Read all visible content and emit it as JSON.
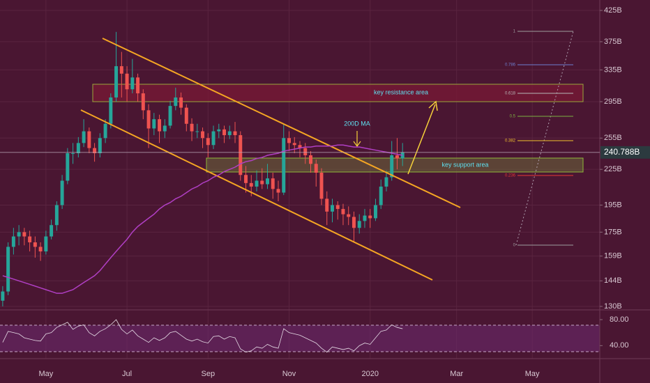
{
  "chart_data": {
    "type": "candlestick",
    "log": true,
    "grid": true,
    "categories": [
      null,
      null,
      null,
      null,
      null,
      null,
      null,
      null,
      "May",
      null,
      null,
      null,
      null,
      null,
      null,
      null,
      null,
      null,
      null,
      null,
      null,
      null,
      null,
      "Jul",
      null,
      null,
      null,
      null,
      null,
      null,
      null,
      null,
      null,
      null,
      null,
      null,
      null,
      null,
      "Sep",
      null,
      null,
      null,
      null,
      null,
      null,
      null,
      null,
      null,
      null,
      null,
      null,
      null,
      null,
      "Nov",
      null,
      null,
      null,
      null,
      null,
      null,
      null,
      null,
      null,
      null,
      null,
      null,
      null,
      null,
      "2020",
      null,
      null,
      null,
      null,
      null,
      null,
      null,
      null,
      null,
      null,
      null,
      null,
      null,
      null,
      null,
      "Mar",
      null,
      null,
      null,
      null,
      null,
      null,
      null,
      null,
      null,
      null,
      null,
      null,
      null,
      "May",
      null,
      null,
      null,
      null,
      null,
      null,
      null,
      null,
      null,
      null,
      null,
      null
    ],
    "up_color": "#26a69a",
    "down_color": "#ef5350",
    "ohlc": [
      [
        133,
        141,
        130,
        138
      ],
      [
        138,
        168,
        136,
        165
      ],
      [
        165,
        178,
        160,
        172
      ],
      [
        172,
        180,
        166,
        175
      ],
      [
        175,
        178,
        166,
        172
      ],
      [
        172,
        176,
        162,
        168
      ],
      [
        168,
        172,
        158,
        165
      ],
      [
        165,
        168,
        156,
        162
      ],
      [
        162,
        176,
        160,
        172
      ],
      [
        172,
        184,
        170,
        180
      ],
      [
        180,
        198,
        176,
        195
      ],
      [
        195,
        220,
        192,
        215
      ],
      [
        215,
        245,
        212,
        240
      ],
      [
        240,
        250,
        230,
        240
      ],
      [
        240,
        256,
        236,
        250
      ],
      [
        250,
        275,
        246,
        262
      ],
      [
        262,
        266,
        240,
        245
      ],
      [
        245,
        250,
        232,
        240
      ],
      [
        240,
        260,
        236,
        255
      ],
      [
        255,
        275,
        250,
        270
      ],
      [
        270,
        305,
        265,
        300
      ],
      [
        300,
        390,
        295,
        340
      ],
      [
        340,
        360,
        300,
        330
      ],
      [
        330,
        340,
        295,
        310
      ],
      [
        310,
        350,
        305,
        325
      ],
      [
        325,
        330,
        295,
        305
      ],
      [
        305,
        310,
        275,
        285
      ],
      [
        285,
        292,
        245,
        265
      ],
      [
        265,
        282,
        258,
        275
      ],
      [
        275,
        280,
        250,
        262
      ],
      [
        262,
        275,
        255,
        268
      ],
      [
        268,
        296,
        265,
        290
      ],
      [
        290,
        312,
        285,
        300
      ],
      [
        300,
        306,
        280,
        288
      ],
      [
        288,
        292,
        262,
        270
      ],
      [
        270,
        276,
        252,
        262
      ],
      [
        262,
        270,
        255,
        262
      ],
      [
        262,
        266,
        245,
        255
      ],
      [
        255,
        260,
        236,
        248
      ],
      [
        248,
        268,
        244,
        262
      ],
      [
        262,
        270,
        255,
        264
      ],
      [
        264,
        268,
        250,
        258
      ],
      [
        258,
        268,
        254,
        262
      ],
      [
        262,
        272,
        250,
        258
      ],
      [
        258,
        262,
        215,
        220
      ],
      [
        220,
        228,
        205,
        213
      ],
      [
        213,
        220,
        202,
        210
      ],
      [
        210,
        224,
        206,
        215
      ],
      [
        215,
        226,
        208,
        212
      ],
      [
        212,
        230,
        208,
        217
      ],
      [
        217,
        222,
        200,
        208
      ],
      [
        208,
        215,
        198,
        205
      ],
      [
        205,
        270,
        203,
        255
      ],
      [
        255,
        262,
        242,
        250
      ],
      [
        250,
        256,
        240,
        248
      ],
      [
        248,
        252,
        236,
        245
      ],
      [
        245,
        250,
        230,
        238
      ],
      [
        238,
        242,
        222,
        230
      ],
      [
        230,
        234,
        210,
        222
      ],
      [
        222,
        226,
        195,
        200
      ],
      [
        200,
        206,
        180,
        190
      ],
      [
        190,
        200,
        182,
        195
      ],
      [
        195,
        198,
        184,
        192
      ],
      [
        192,
        196,
        180,
        188
      ],
      [
        188,
        194,
        180,
        186
      ],
      [
        186,
        190,
        168,
        178
      ],
      [
        178,
        188,
        174,
        183
      ],
      [
        183,
        192,
        178,
        187
      ],
      [
        187,
        192,
        178,
        185
      ],
      [
        185,
        200,
        183,
        195
      ],
      [
        195,
        216,
        192,
        210
      ],
      [
        210,
        224,
        206,
        218
      ],
      [
        218,
        252,
        215,
        238
      ],
      [
        238,
        255,
        225,
        235
      ],
      [
        235,
        250,
        228,
        240.788
      ],
      null,
      null,
      null,
      null,
      null,
      null,
      null,
      null,
      null,
      null,
      null,
      null,
      null,
      null,
      null,
      null,
      null,
      null,
      null,
      null,
      null,
      null,
      null,
      null,
      null,
      null,
      null,
      null,
      null,
      null,
      null,
      null,
      null,
      null,
      null,
      null
    ],
    "ma_color": "#b03fc4",
    "ma_values": [
      147,
      146,
      145,
      144,
      143,
      142,
      141,
      140,
      139,
      138,
      137,
      137,
      138,
      139,
      141,
      143,
      145,
      147,
      150,
      154,
      158,
      162,
      166,
      170,
      175,
      179,
      182,
      185,
      188,
      192,
      195,
      197,
      200,
      202,
      205,
      208,
      210,
      213,
      215,
      218,
      220,
      223,
      225,
      227,
      230,
      232,
      233,
      235,
      236,
      238,
      239,
      240,
      242,
      243,
      244,
      245,
      246,
      246,
      247,
      247,
      247,
      247,
      248,
      248,
      247,
      246,
      246,
      245,
      244,
      243,
      242,
      241,
      240,
      239,
      238,
      null,
      null,
      null,
      null,
      null,
      null,
      null,
      null,
      null,
      null,
      null,
      null,
      null,
      null,
      null,
      null,
      null,
      null,
      null,
      null,
      null,
      null,
      null,
      null,
      null,
      null,
      null,
      null,
      null,
      null,
      null,
      null,
      null,
      null,
      null,
      null
    ],
    "ylim": [
      130,
      425
    ],
    "yticks": [
      {
        "value": 130,
        "label": "130B"
      },
      {
        "value": 144,
        "label": "144B"
      },
      {
        "value": 159,
        "label": "159B"
      },
      {
        "value": 175,
        "label": "175B"
      },
      {
        "value": 195,
        "label": "195B"
      },
      {
        "value": 225,
        "label": "225B"
      },
      {
        "value": 255,
        "label": "255B"
      },
      {
        "value": 295,
        "label": "295B"
      },
      {
        "value": 335,
        "label": "335B"
      },
      {
        "value": 375,
        "label": "375B"
      },
      {
        "value": 425,
        "label": "425B"
      }
    ],
    "last_price": {
      "value": 240.788,
      "label": "240.788B"
    },
    "rsi": {
      "color": "#e6dce6",
      "ylim": [
        20,
        95
      ],
      "yticks": [
        {
          "value": 80,
          "label": "80.00"
        },
        {
          "value": 40,
          "label": "40.00"
        }
      ],
      "values": [
        45,
        62,
        60,
        58,
        52,
        50,
        48,
        47,
        58,
        60,
        68,
        72,
        76,
        65,
        70,
        72,
        60,
        55,
        62,
        66,
        72,
        80,
        65,
        58,
        64,
        55,
        50,
        45,
        52,
        48,
        52,
        60,
        62,
        56,
        50,
        47,
        50,
        46,
        44,
        54,
        55,
        50,
        54,
        52,
        35,
        30,
        32,
        38,
        36,
        42,
        38,
        36,
        66,
        60,
        58,
        56,
        52,
        48,
        44,
        36,
        30,
        38,
        36,
        34,
        36,
        32,
        40,
        44,
        42,
        52,
        62,
        64,
        72,
        68,
        66,
        null,
        null,
        null,
        null,
        null,
        null,
        null,
        null,
        null,
        null,
        null,
        null,
        null,
        null,
        null,
        null,
        null,
        null,
        null,
        null,
        null,
        null,
        null,
        null,
        null,
        null,
        null,
        null,
        null,
        null,
        null,
        null,
        null,
        null,
        null,
        null
      ]
    },
    "annotations": {
      "resistance": "key resistance area",
      "support": "key support area",
      "ma_label": "200D MA"
    },
    "fib_levels": [
      1,
      0.786,
      0.618,
      0.5,
      0.382,
      0.236,
      0
    ]
  }
}
